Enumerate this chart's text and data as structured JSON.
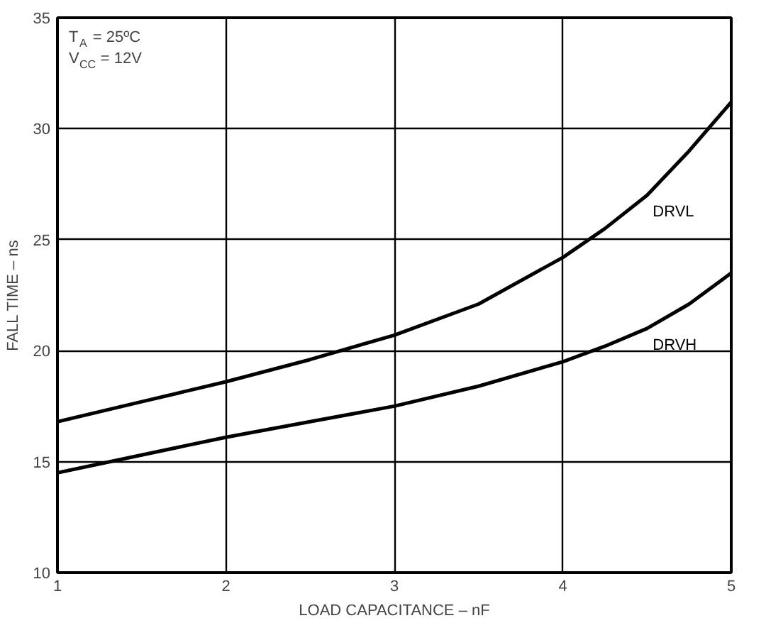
{
  "chart_data": {
    "type": "line",
    "xlabel": "LOAD CAPACITANCE – nF",
    "ylabel": "FALL TIME – ns",
    "x": [
      1,
      1.5,
      2,
      2.5,
      3,
      3.5,
      4,
      4.25,
      4.5,
      4.75,
      5
    ],
    "series": [
      {
        "name": "DRVL",
        "color": "#000000",
        "values": [
          16.8,
          17.7,
          18.6,
          19.6,
          20.7,
          22.1,
          24.2,
          25.5,
          27.0,
          29.0,
          31.2
        ]
      },
      {
        "name": "DRVH",
        "color": "#000000",
        "values": [
          14.5,
          15.3,
          16.1,
          16.8,
          17.5,
          18.4,
          19.5,
          20.2,
          21.0,
          22.1,
          23.5
        ]
      }
    ],
    "xlim": [
      1,
      5
    ],
    "xticks": [
      1,
      2,
      3,
      4,
      5
    ],
    "ylim": [
      10,
      35
    ],
    "yticks": [
      10,
      15,
      20,
      25,
      30,
      35
    ],
    "grid": true,
    "marker": "none",
    "line_style": "solid",
    "annotations": [
      "T$_{A}$ = 25ºC",
      "V$_{CC}$ = 12V"
    ]
  }
}
